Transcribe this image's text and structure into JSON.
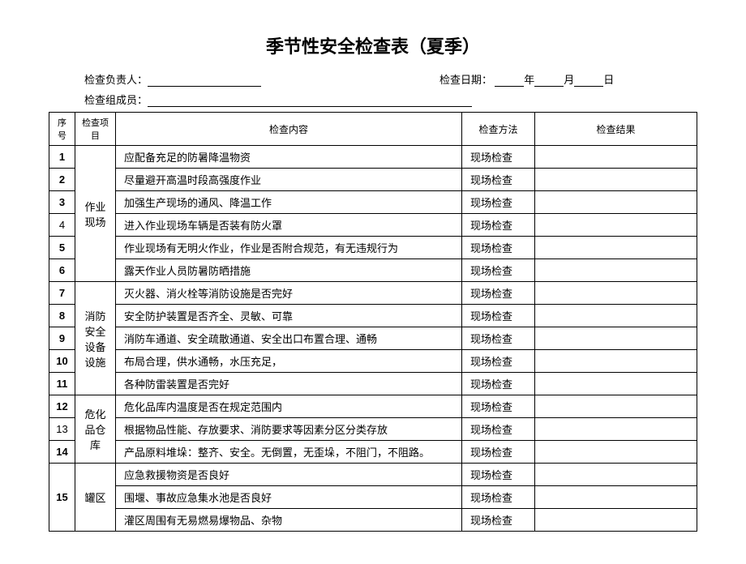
{
  "title": "季节性安全检查表（夏季）",
  "header": {
    "responsible_label": "检查负责人：",
    "date_label": "检查日期：",
    "year_suffix": "年",
    "month_suffix": "月",
    "day_suffix": "日",
    "members_label": "检查组成员："
  },
  "columns": {
    "seq": "序号",
    "item": "检查项目",
    "content": "检查内容",
    "method": "检查方法",
    "result": "检查结果"
  },
  "method_text": "现场检查",
  "groups": [
    {
      "item": "作业现场",
      "rows": [
        {
          "seq": "1",
          "bold": true,
          "content": "应配备充足的防暑降温物资"
        },
        {
          "seq": "2",
          "bold": true,
          "content": "尽量避开高温时段高强度作业"
        },
        {
          "seq": "3",
          "bold": true,
          "content": "加强生产现场的通风、降温工作"
        },
        {
          "seq": "4",
          "bold": false,
          "content": "进入作业现场车辆是否装有防火罩"
        },
        {
          "seq": "5",
          "bold": true,
          "content": "作业现场有无明火作业，作业是否附合规范，有无违规行为"
        },
        {
          "seq": "6",
          "bold": true,
          "content": "露天作业人员防暑防晒措施"
        }
      ]
    },
    {
      "item": "消防安全设备设施",
      "rows": [
        {
          "seq": "7",
          "bold": true,
          "content": "灭火器、消火栓等消防设施是否完好"
        },
        {
          "seq": "8",
          "bold": true,
          "content": "安全防护装置是否齐全、灵敏、可靠"
        },
        {
          "seq": "9",
          "bold": true,
          "content": "消防车通道、安全疏散通道、安全出口布置合理、通畅"
        },
        {
          "seq": "10",
          "bold": true,
          "content": "布局合理，供水通畅，水压充足，"
        },
        {
          "seq": "11",
          "bold": true,
          "content": "各种防雷装置是否完好"
        }
      ]
    },
    {
      "item": "危化品仓库",
      "rows": [
        {
          "seq": "12",
          "bold": true,
          "content": "危化品库内温度是否在规定范围内"
        },
        {
          "seq": "13",
          "bold": false,
          "content": "根据物品性能、存放要求、消防要求等因素分区分类存放"
        },
        {
          "seq": "14",
          "bold": true,
          "content": "产品原料堆垛：整齐、安全。无倒置，无歪垛，不阻门，不阻路。"
        }
      ]
    },
    {
      "item": "罐区",
      "rows": [
        {
          "seq": "",
          "bold": false,
          "content": "应急救援物资是否良好"
        },
        {
          "seq": "15",
          "bold": true,
          "content": "围堰、事故应急集水池是否良好"
        },
        {
          "seq": "",
          "bold": false,
          "content": "灌区周围有无易燃易爆物品、杂物"
        }
      ]
    }
  ]
}
